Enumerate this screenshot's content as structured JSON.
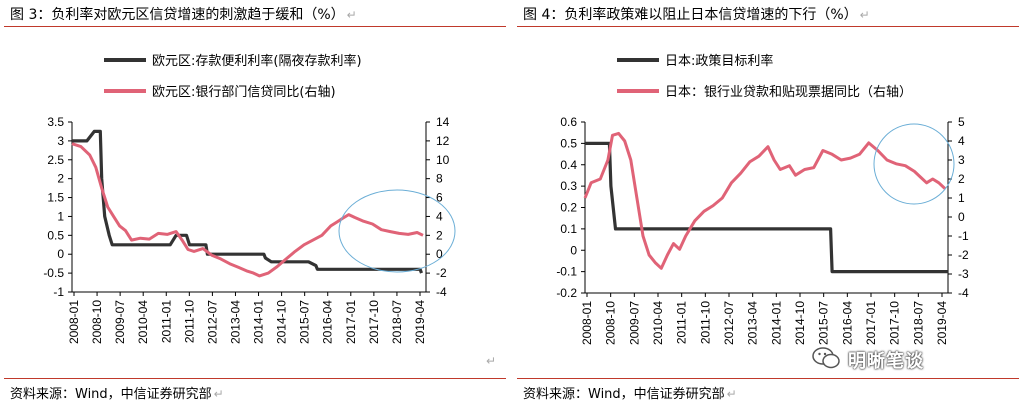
{
  "page": {
    "return_mark": "↵",
    "left_stray_mark": "↵",
    "watermark_text": "明晰笔谈",
    "colors": {
      "black_series": "#333333",
      "pink_series": "#e06377",
      "rule": "#c0392b",
      "circle": "#6baed6"
    }
  },
  "chart_data": [
    {
      "type": "line",
      "title": "图 3：负利率对欧元区信贷增速的刺激趋于缓和（%）",
      "source": "资料来源：Wind，中信证券研究部",
      "x_ticks": [
        "2008-01",
        "2008-10",
        "2009-07",
        "2010-04",
        "2011-01",
        "2011-10",
        "2012-07",
        "2013-04",
        "2014-01",
        "2014-10",
        "2015-07",
        "2016-04",
        "2017-01",
        "2017-10",
        "2018-07",
        "2019-04"
      ],
      "x_range": [
        2008.0,
        2019.9
      ],
      "left_axis": {
        "ticks": [
          "3.5",
          "3",
          "2.5",
          "2",
          "1.5",
          "1",
          "0.5",
          "0",
          "-0.5",
          "-1"
        ],
        "min": -1,
        "max": 3.5
      },
      "right_axis": {
        "ticks": [
          "14",
          "12",
          "10",
          "8",
          "6",
          "4",
          "2",
          "0",
          "-2",
          "-4"
        ],
        "min": -4,
        "max": 14
      },
      "series": [
        {
          "name": "欧元区:存款便利利率(隔夜存款利率)",
          "axis": "left",
          "color": "#333333",
          "points": [
            [
              2008.0,
              3.0
            ],
            [
              2008.5,
              3.0
            ],
            [
              2008.75,
              3.25
            ],
            [
              2008.95,
              3.25
            ],
            [
              2009.0,
              2.0
            ],
            [
              2009.1,
              1.0
            ],
            [
              2009.25,
              0.5
            ],
            [
              2009.35,
              0.25
            ],
            [
              2011.3,
              0.25
            ],
            [
              2011.5,
              0.5
            ],
            [
              2011.85,
              0.5
            ],
            [
              2011.95,
              0.25
            ],
            [
              2012.5,
              0.25
            ],
            [
              2012.55,
              0.0
            ],
            [
              2014.45,
              0.0
            ],
            [
              2014.5,
              -0.1
            ],
            [
              2014.7,
              -0.2
            ],
            [
              2015.95,
              -0.2
            ],
            [
              2016.2,
              -0.3
            ],
            [
              2016.25,
              -0.4
            ],
            [
              2019.7,
              -0.4
            ],
            [
              2019.75,
              -0.5
            ]
          ]
        },
        {
          "name": "欧元区:银行部门信贷同比(右轴)",
          "axis": "right",
          "color": "#e06377",
          "points": [
            [
              2008.0,
              11.7
            ],
            [
              2008.3,
              11.4
            ],
            [
              2008.6,
              10.5
            ],
            [
              2008.8,
              9.2
            ],
            [
              2009.0,
              7.0
            ],
            [
              2009.2,
              5.0
            ],
            [
              2009.4,
              4.0
            ],
            [
              2009.6,
              3.0
            ],
            [
              2009.8,
              2.5
            ],
            [
              2010.0,
              1.5
            ],
            [
              2010.3,
              1.7
            ],
            [
              2010.6,
              1.6
            ],
            [
              2010.9,
              2.2
            ],
            [
              2011.2,
              2.1
            ],
            [
              2011.5,
              2.4
            ],
            [
              2011.7,
              1.5
            ],
            [
              2011.9,
              0.5
            ],
            [
              2012.1,
              0.3
            ],
            [
              2012.4,
              0.6
            ],
            [
              2012.7,
              -0.1
            ],
            [
              2013.0,
              -0.5
            ],
            [
              2013.3,
              -1.0
            ],
            [
              2013.6,
              -1.4
            ],
            [
              2013.9,
              -1.8
            ],
            [
              2014.1,
              -2.0
            ],
            [
              2014.3,
              -2.3
            ],
            [
              2014.6,
              -2.0
            ],
            [
              2014.9,
              -1.3
            ],
            [
              2015.2,
              -0.5
            ],
            [
              2015.5,
              0.3
            ],
            [
              2015.8,
              1.0
            ],
            [
              2016.1,
              1.5
            ],
            [
              2016.4,
              2.0
            ],
            [
              2016.7,
              3.0
            ],
            [
              2016.9,
              3.4
            ],
            [
              2017.1,
              3.8
            ],
            [
              2017.3,
              4.2
            ],
            [
              2017.5,
              3.9
            ],
            [
              2017.8,
              3.5
            ],
            [
              2018.1,
              3.2
            ],
            [
              2018.4,
              2.6
            ],
            [
              2018.7,
              2.4
            ],
            [
              2019.0,
              2.2
            ],
            [
              2019.3,
              2.1
            ],
            [
              2019.6,
              2.3
            ],
            [
              2019.8,
              2.0
            ]
          ]
        }
      ],
      "annotation": "circle highlighting 2016-2019 segment"
    },
    {
      "type": "line",
      "title": "图 4：负利率政策难以阻止日本信贷增速的下行（%）",
      "source": "资料来源：Wind，中信证券研究部",
      "x_ticks": [
        "2008-01",
        "2008-10",
        "2009-07",
        "2010-04",
        "2011-01",
        "2011-10",
        "2012-07",
        "2013-04",
        "2014-01",
        "2014-10",
        "2015-07",
        "2016-04",
        "2017-01",
        "2017-10",
        "2018-07",
        "2019-04"
      ],
      "x_range": [
        2008.0,
        2019.9
      ],
      "left_axis": {
        "ticks": [
          "0.6",
          "0.5",
          "0.4",
          "0.3",
          "0.2",
          "0.1",
          "0",
          "-0.1",
          "-0.2"
        ],
        "min": -0.2,
        "max": 0.6
      },
      "right_axis": {
        "ticks": [
          "5",
          "4",
          "3",
          "2",
          "1",
          "0",
          "-1",
          "-2",
          "-3",
          "-4"
        ],
        "min": -4,
        "max": 5
      },
      "series": [
        {
          "name": "日本:政策目标利率",
          "axis": "left",
          "color": "#333333",
          "points": [
            [
              2008.0,
              0.5
            ],
            [
              2008.8,
              0.5
            ],
            [
              2008.85,
              0.3
            ],
            [
              2009.0,
              0.1
            ],
            [
              2016.05,
              0.1
            ],
            [
              2016.1,
              -0.1
            ],
            [
              2019.9,
              -0.1
            ]
          ]
        },
        {
          "name": "日本：银行业贷款和贴现票据同比（右轴）",
          "axis": "right",
          "color": "#e06377",
          "points": [
            [
              2008.0,
              1.0
            ],
            [
              2008.2,
              1.8
            ],
            [
              2008.5,
              2.0
            ],
            [
              2008.75,
              3.0
            ],
            [
              2008.9,
              4.3
            ],
            [
              2009.1,
              4.4
            ],
            [
              2009.3,
              4.0
            ],
            [
              2009.5,
              3.0
            ],
            [
              2009.7,
              1.0
            ],
            [
              2009.9,
              -1.0
            ],
            [
              2010.1,
              -2.0
            ],
            [
              2010.3,
              -2.4
            ],
            [
              2010.5,
              -2.7
            ],
            [
              2010.7,
              -2.0
            ],
            [
              2010.9,
              -1.4
            ],
            [
              2011.1,
              -1.7
            ],
            [
              2011.3,
              -1.0
            ],
            [
              2011.6,
              -0.2
            ],
            [
              2011.9,
              0.3
            ],
            [
              2012.2,
              0.6
            ],
            [
              2012.5,
              1.0
            ],
            [
              2012.8,
              1.8
            ],
            [
              2013.1,
              2.3
            ],
            [
              2013.4,
              2.9
            ],
            [
              2013.7,
              3.2
            ],
            [
              2014.0,
              3.7
            ],
            [
              2014.2,
              3.0
            ],
            [
              2014.4,
              2.5
            ],
            [
              2014.7,
              2.7
            ],
            [
              2014.9,
              2.2
            ],
            [
              2015.2,
              2.5
            ],
            [
              2015.5,
              2.6
            ],
            [
              2015.8,
              3.5
            ],
            [
              2016.1,
              3.3
            ],
            [
              2016.4,
              3.0
            ],
            [
              2016.7,
              3.1
            ],
            [
              2017.0,
              3.3
            ],
            [
              2017.3,
              3.9
            ],
            [
              2017.6,
              3.5
            ],
            [
              2017.9,
              3.0
            ],
            [
              2018.2,
              2.8
            ],
            [
              2018.5,
              2.7
            ],
            [
              2018.8,
              2.4
            ],
            [
              2019.0,
              2.1
            ],
            [
              2019.2,
              1.8
            ],
            [
              2019.4,
              2.0
            ],
            [
              2019.6,
              1.8
            ],
            [
              2019.8,
              1.5
            ]
          ]
        }
      ],
      "annotation": "circle highlighting 2017-2019 segment"
    }
  ]
}
